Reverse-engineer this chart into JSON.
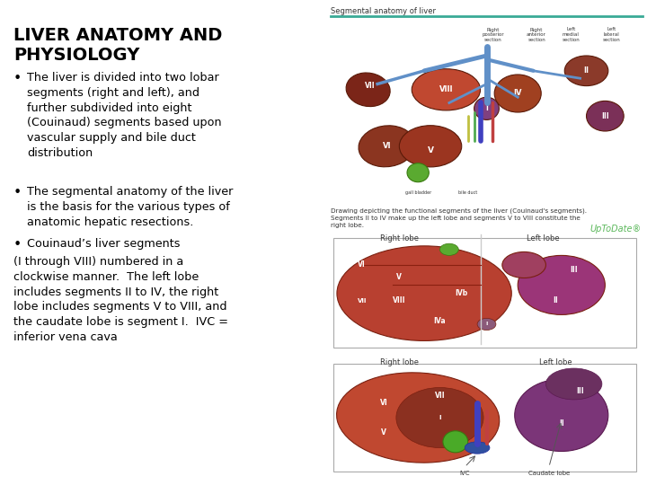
{
  "background_color": "#ffffff",
  "title_line1": "LIVER ANATOMY AND",
  "title_line2": "PHYSIOLOGY",
  "title_fontsize": 14,
  "bullet1": "The liver is divided into two lobar\nsegments (right and left), and\nfurther subdivided into eight\n(Couinaud) segments based upon\nvascular supply and bile duct\ndistribution",
  "bullet2": "The segmental anatomy of the liver\nis the basis for the various types of\nanatomic hepatic resections.",
  "bullet3": "Couinaud’s liver segments",
  "extra_text": "(I through VIII) numbered in a\nclockwise manner.  The left lobe\nincludes segments II to IV, the right\nlobe includes segments V to VIII, and\nthe caudate lobe is segment I.  IVC =\ninferior vena cava",
  "bullet_fontsize": 9.2,
  "teal_line_color": "#3aaa96",
  "uptodate_color": "#5cb85c",
  "img_label": "Segmental anatomy of liver",
  "caption_text": "Drawing depicting the functional segments of the liver (Couinaud's segments).\nSegments II to IV make up the left lobe and segments V to VIII constitute the\nright lobe.",
  "right_label1a": "Right lobe",
  "right_label1b": "Left lobe",
  "right_label2a": "Right lobe",
  "right_label2b": "Left lobe",
  "ivc_label": "IVC",
  "caudate_label": "Caudate lobe",
  "liver_brown": "#8B3A2A",
  "liver_light": "#B5523A",
  "liver_dark": "#6B2A1A",
  "liver_orange": "#C06030",
  "liver_purple": "#7B3B5E",
  "liver_green": "#4A8A30",
  "vein_blue": "#6090C8",
  "segment_colors": {
    "I": "#7B3B5E",
    "II": "#8B3A2A",
    "III": "#7B3058",
    "IV": "#A04020",
    "V": "#9B3828",
    "VI": "#8B3020",
    "VII": "#7B2818",
    "VIII": "#B04830"
  }
}
